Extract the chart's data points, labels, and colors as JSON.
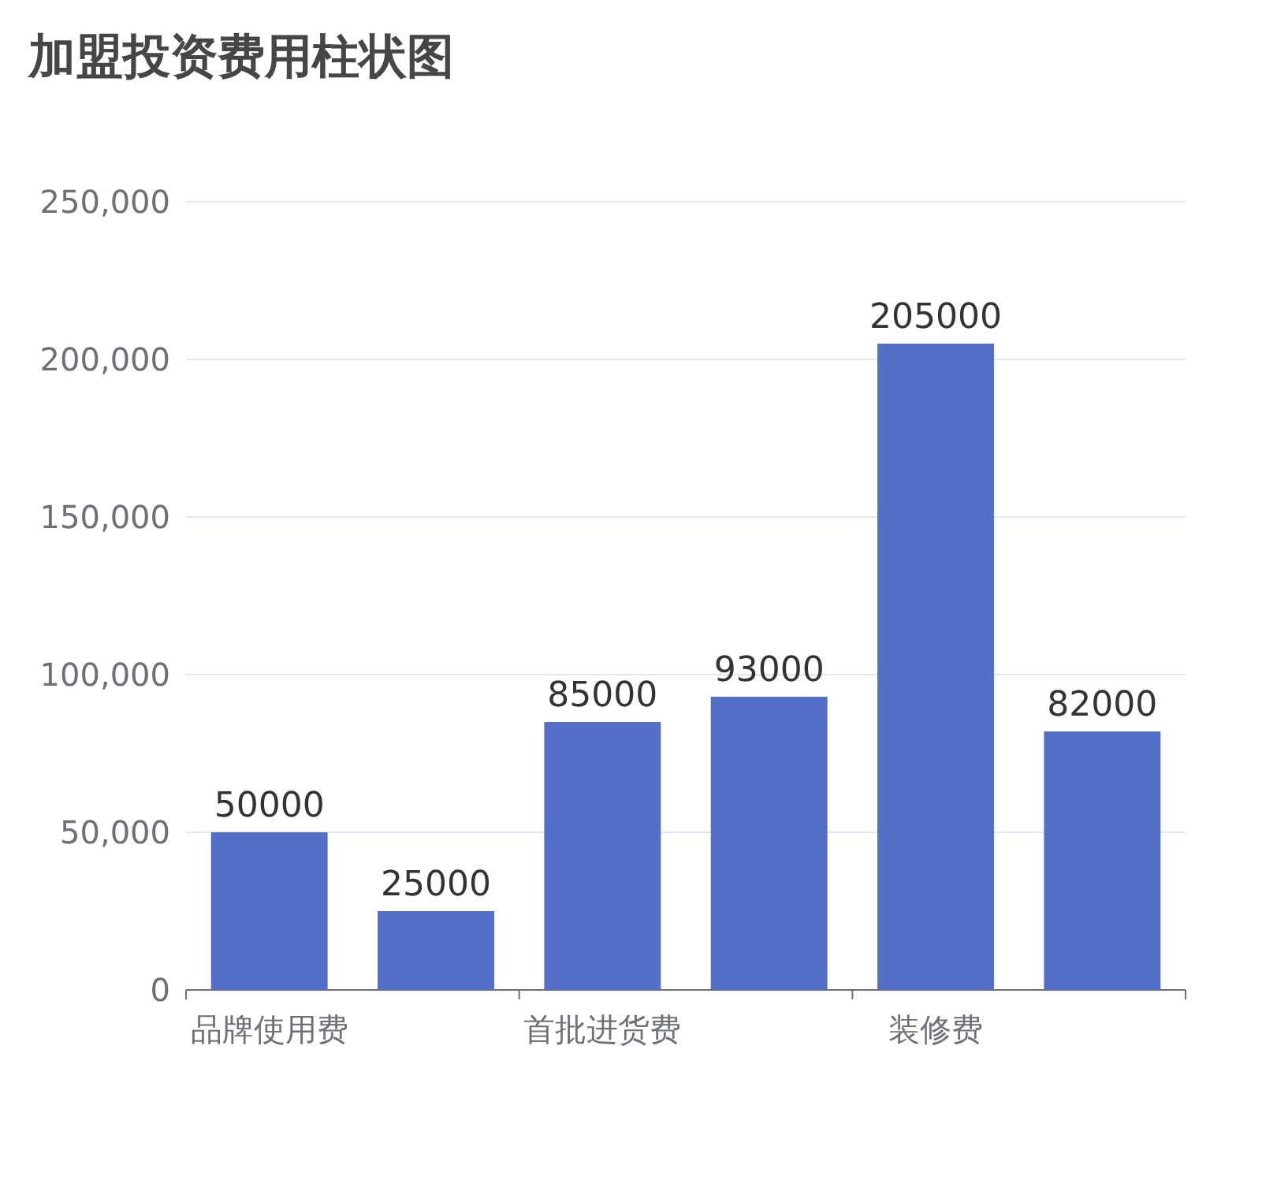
{
  "chart_data": {
    "type": "bar",
    "title": "加盟投资费用柱状图",
    "categories": [
      "品牌使用费",
      null,
      "首批进货费",
      null,
      "装修费",
      null
    ],
    "values": [
      50000,
      25000,
      85000,
      93000,
      205000,
      82000
    ],
    "color": "#5470c6",
    "ylim": [
      0,
      250000
    ],
    "yticks": [
      0,
      {
        "value": 50000,
        "label": "50,000"
      },
      {
        "value": 100000,
        "label": "100,000"
      },
      {
        "value": 150000,
        "label": "150,000"
      },
      {
        "value": 200000,
        "label": "200,000"
      },
      {
        "value": 250000,
        "label": "250,000"
      }
    ],
    "grid": "y",
    "data_labels": true
  }
}
